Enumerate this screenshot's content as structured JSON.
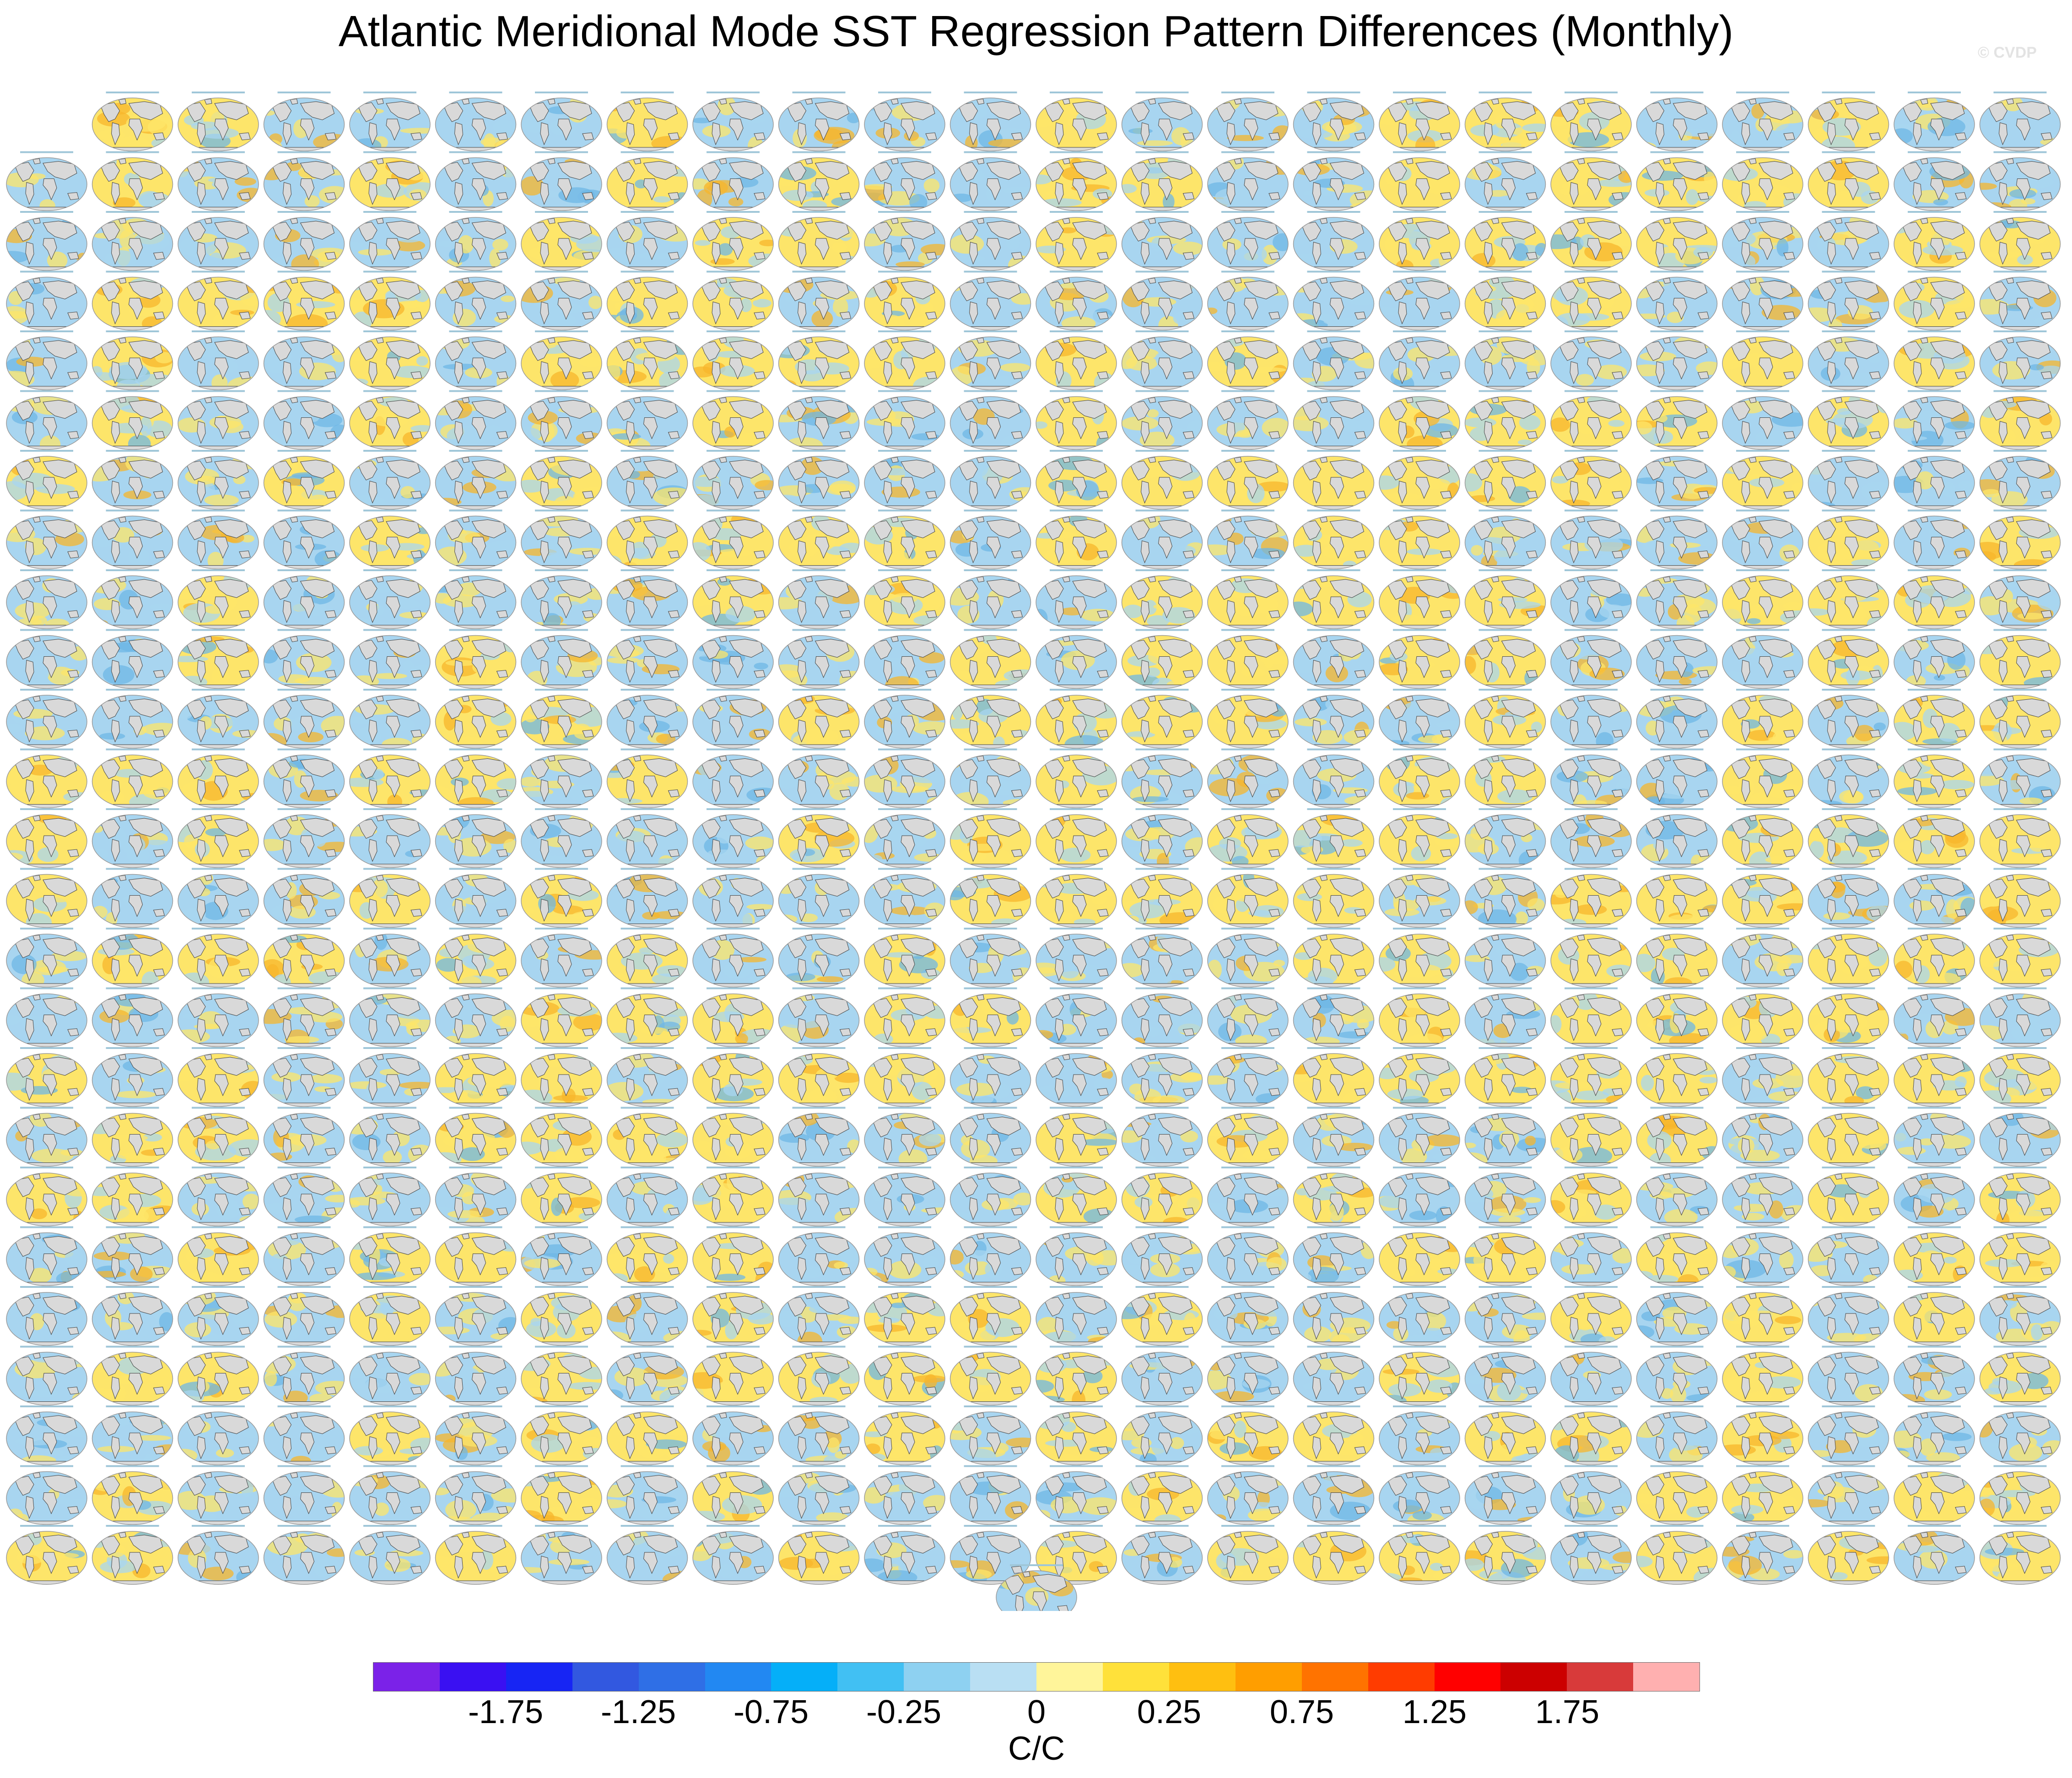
{
  "title": "Atlantic Meridional Mode SST Regression Pattern Differences (Monthly)",
  "credit": "© CVDP",
  "units": "C/C",
  "colorbar": {
    "colors": [
      "#7b22e8",
      "#3a10f2",
      "#1725f4",
      "#3258e0",
      "#2f6fe6",
      "#2288f2",
      "#05aff8",
      "#41c0f3",
      "#8ed1f1",
      "#b9dff3",
      "#fff59a",
      "#ffe13a",
      "#ffbf10",
      "#ff9e00",
      "#ff7300",
      "#ff3c00",
      "#ff0000",
      "#cc0000",
      "#d83a3a",
      "#ffb0b0"
    ],
    "tick_labels": [
      "-1.75",
      "-1.25",
      "-0.75",
      "-0.25",
      "0",
      "0.25",
      "0.75",
      "1.25",
      "1.75"
    ]
  },
  "panel_grid": {
    "rows": 25,
    "columns": 24,
    "first_row_columns": 23,
    "extra_panel_count": 1,
    "palette_cool": "#a8d5f0",
    "palette_warm": "#fde56a",
    "palette_hot": "#f7b52c",
    "land_color": "#d9d9d9"
  }
}
